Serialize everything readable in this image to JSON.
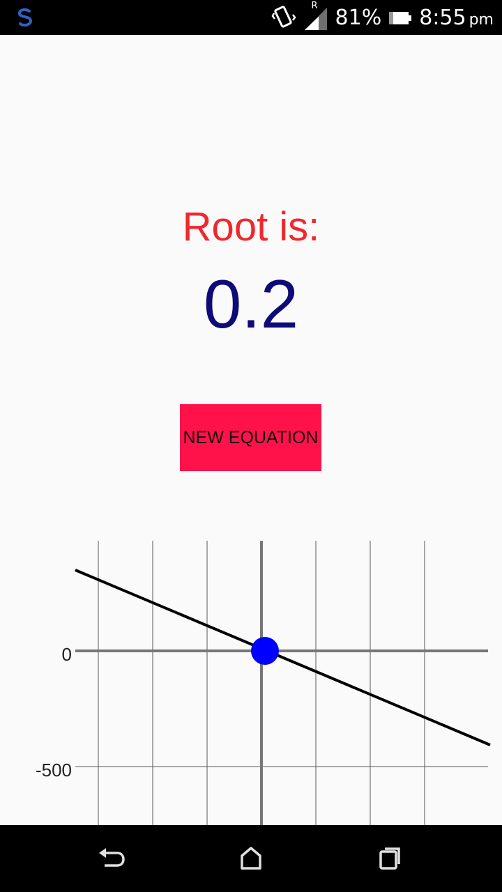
{
  "status_bar": {
    "battery_percent": "81%",
    "time": "8:55",
    "time_suffix": "pm",
    "signal_roaming_label": "R",
    "icons": [
      "app-s-icon",
      "vibrate-icon",
      "signal-icon",
      "battery-icon"
    ]
  },
  "result": {
    "label": "Root is:",
    "value": "0.2"
  },
  "actions": {
    "new_equation_label": "NEW EQUATION"
  },
  "chart_data": {
    "type": "line",
    "y_tick_labels": [
      "0",
      "-500"
    ],
    "y_ticks": [
      0,
      -500
    ],
    "root_point": {
      "x": 0.2,
      "y": 0
    },
    "grid": true
  },
  "navbar": {
    "icons": [
      "back-icon",
      "home-icon",
      "recents-icon"
    ]
  },
  "colors": {
    "label": "#f0282d",
    "value": "#0e0b78",
    "button": "#ff1249",
    "root_point": "#0000ff"
  }
}
